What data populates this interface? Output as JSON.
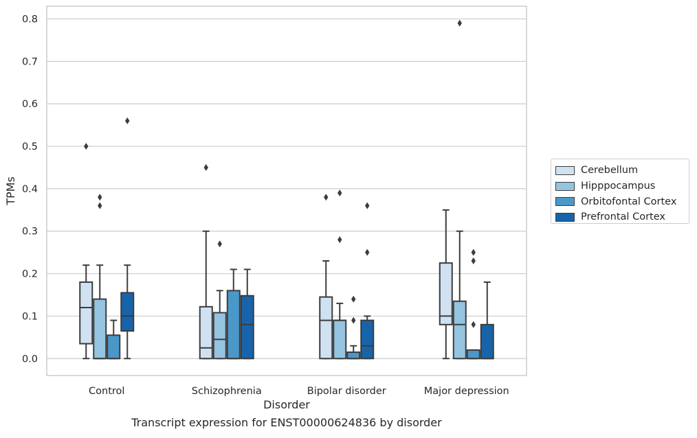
{
  "caption": "Transcript expression for ENST00000624836 by disorder",
  "chart_data": {
    "type": "box",
    "title": "",
    "xlabel": "Disorder",
    "ylabel": "TPMs",
    "ylim": [
      -0.04,
      0.83
    ],
    "yticks": [
      0.0,
      0.1,
      0.2,
      0.3,
      0.4,
      0.5,
      0.6,
      0.7,
      0.8
    ],
    "ytick_labels": [
      "0.0",
      "0.1",
      "0.2",
      "0.3",
      "0.4",
      "0.5",
      "0.6",
      "0.7",
      "0.8"
    ],
    "grid": "horizontal",
    "legend_position": "right",
    "categories": [
      "Control",
      "Schizophrenia",
      "Bipolar disorder",
      "Major depression"
    ],
    "series": [
      {
        "name": "Cerebellum",
        "color": "#d0e1f2",
        "boxes": [
          {
            "whislo": 0.0,
            "q1": 0.035,
            "med": 0.12,
            "q3": 0.18,
            "whishi": 0.22,
            "fliers": [
              0.5
            ]
          },
          {
            "whislo": 0.0,
            "q1": 0.0,
            "med": 0.025,
            "q3": 0.122,
            "whishi": 0.3,
            "fliers": [
              0.45
            ]
          },
          {
            "whislo": 0.0,
            "q1": 0.0,
            "med": 0.09,
            "q3": 0.145,
            "whishi": 0.23,
            "fliers": [
              0.38
            ]
          },
          {
            "whislo": 0.0,
            "q1": 0.08,
            "med": 0.1,
            "q3": 0.225,
            "whishi": 0.35,
            "fliers": []
          }
        ]
      },
      {
        "name": "Hipppocampus",
        "color": "#94c4df",
        "boxes": [
          {
            "whislo": 0.0,
            "q1": 0.0,
            "med": 0.0,
            "q3": 0.14,
            "whishi": 0.22,
            "fliers": [
              0.38,
              0.36
            ]
          },
          {
            "whislo": 0.0,
            "q1": 0.0,
            "med": 0.045,
            "q3": 0.108,
            "whishi": 0.16,
            "fliers": [
              0.27
            ]
          },
          {
            "whislo": 0.0,
            "q1": 0.0,
            "med": 0.09,
            "q3": 0.09,
            "whishi": 0.13,
            "fliers": [
              0.39,
              0.28
            ]
          },
          {
            "whislo": 0.0,
            "q1": 0.0,
            "med": 0.08,
            "q3": 0.135,
            "whishi": 0.3,
            "fliers": [
              0.79
            ]
          }
        ]
      },
      {
        "name": "Orbitofontal Cortex",
        "color": "#4a98c9",
        "boxes": [
          {
            "whislo": 0.0,
            "q1": 0.0,
            "med": 0.0,
            "q3": 0.055,
            "whishi": 0.09,
            "fliers": []
          },
          {
            "whislo": 0.0,
            "q1": 0.0,
            "med": 0.0,
            "q3": 0.16,
            "whishi": 0.21,
            "fliers": []
          },
          {
            "whislo": 0.0,
            "q1": 0.0,
            "med": 0.0,
            "q3": 0.015,
            "whishi": 0.03,
            "fliers": [
              0.14,
              0.09
            ]
          },
          {
            "whislo": 0.0,
            "q1": 0.0,
            "med": 0.0,
            "q3": 0.02,
            "whishi": 0.02,
            "fliers": [
              0.25,
              0.23,
              0.08
            ]
          }
        ]
      },
      {
        "name": "Prefrontal Cortex",
        "color": "#1764ab",
        "boxes": [
          {
            "whislo": 0.0,
            "q1": 0.065,
            "med": 0.1,
            "q3": 0.155,
            "whishi": 0.22,
            "fliers": [
              0.56
            ]
          },
          {
            "whislo": 0.0,
            "q1": 0.0,
            "med": 0.08,
            "q3": 0.148,
            "whishi": 0.21,
            "fliers": []
          },
          {
            "whislo": 0.0,
            "q1": 0.0,
            "med": 0.03,
            "q3": 0.09,
            "whishi": 0.1,
            "fliers": [
              0.36,
              0.25
            ]
          },
          {
            "whislo": 0.0,
            "q1": 0.0,
            "med": 0.0,
            "q3": 0.08,
            "whishi": 0.18,
            "fliers": []
          }
        ]
      }
    ]
  }
}
